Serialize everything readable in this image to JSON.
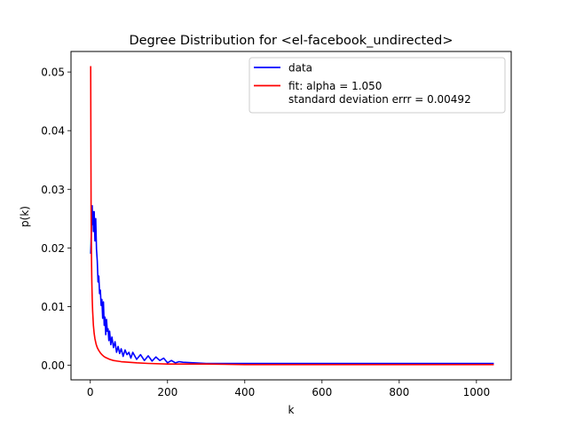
{
  "chart_data": {
    "type": "line",
    "title": "Degree  Distribution for <el-facebook_undirected>",
    "xlabel": "k",
    "ylabel": "p(k)",
    "xlim": [
      -50,
      1090
    ],
    "ylim": [
      -0.0025,
      0.0535
    ],
    "xticks": [
      0,
      200,
      400,
      600,
      800,
      1000
    ],
    "xtick_labels": [
      "0",
      "200",
      "400",
      "600",
      "800",
      "1000"
    ],
    "yticks": [
      0.0,
      0.01,
      0.02,
      0.03,
      0.04,
      0.05
    ],
    "ytick_labels": [
      "0.00",
      "0.01",
      "0.02",
      "0.03",
      "0.04",
      "0.05"
    ],
    "grid": false,
    "legend_position": "top-right",
    "series": [
      {
        "name": "data",
        "color": "#0000ff",
        "x": [
          1,
          2,
          3,
          4,
          5,
          6,
          7,
          8,
          9,
          10,
          12,
          14,
          16,
          18,
          20,
          22,
          24,
          26,
          28,
          30,
          32,
          34,
          36,
          38,
          40,
          42,
          44,
          46,
          48,
          50,
          53,
          56,
          60,
          64,
          68,
          72,
          76,
          80,
          85,
          90,
          95,
          100,
          105,
          110,
          120,
          130,
          140,
          150,
          160,
          170,
          180,
          190,
          200,
          210,
          220,
          230,
          240,
          300,
          400,
          500,
          600,
          700,
          800,
          900,
          1000,
          1045
        ],
        "y": [
          0.019,
          0.021,
          0.0235,
          0.0255,
          0.0272,
          0.024,
          0.0262,
          0.0228,
          0.025,
          0.0262,
          0.0212,
          0.025,
          0.0198,
          0.0178,
          0.0142,
          0.0152,
          0.0122,
          0.0128,
          0.0102,
          0.0112,
          0.008,
          0.0108,
          0.0068,
          0.0082,
          0.0052,
          0.0078,
          0.0058,
          0.0062,
          0.0042,
          0.0058,
          0.0035,
          0.0048,
          0.003,
          0.004,
          0.0022,
          0.0032,
          0.002,
          0.0028,
          0.0015,
          0.0026,
          0.0018,
          0.0022,
          0.0012,
          0.0022,
          0.001,
          0.0018,
          0.0008,
          0.0016,
          0.0007,
          0.0014,
          0.0008,
          0.0012,
          0.0004,
          0.0008,
          0.0004,
          0.0006,
          0.0005,
          0.0003,
          0.0003,
          0.0003,
          0.0003,
          0.0003,
          0.0003,
          0.0003,
          0.0003,
          0.0003
        ]
      },
      {
        "name": "fit: alpha = 1.050\nstandard deviation errr = 0.00492",
        "color": "#ff0000",
        "x": [
          1,
          2,
          3,
          4,
          5,
          6,
          8,
          10,
          12,
          15,
          18,
          22,
          26,
          30,
          35,
          40,
          50,
          60,
          70,
          80,
          100,
          120,
          150,
          200,
          250,
          300,
          400,
          500,
          600,
          800,
          1000,
          1045
        ],
        "y": [
          0.051,
          0.0275,
          0.0185,
          0.014,
          0.0112,
          0.0093,
          0.0068,
          0.0054,
          0.0045,
          0.0036,
          0.003,
          0.0025,
          0.0021,
          0.0018,
          0.0015,
          0.0013,
          0.001,
          0.0008,
          0.0007,
          0.0006,
          0.0005,
          0.0004,
          0.0003,
          0.0002,
          0.0002,
          0.0002,
          0.0001,
          0.0001,
          0.0001,
          0.0001,
          0.0001,
          0.0001
        ]
      }
    ]
  }
}
